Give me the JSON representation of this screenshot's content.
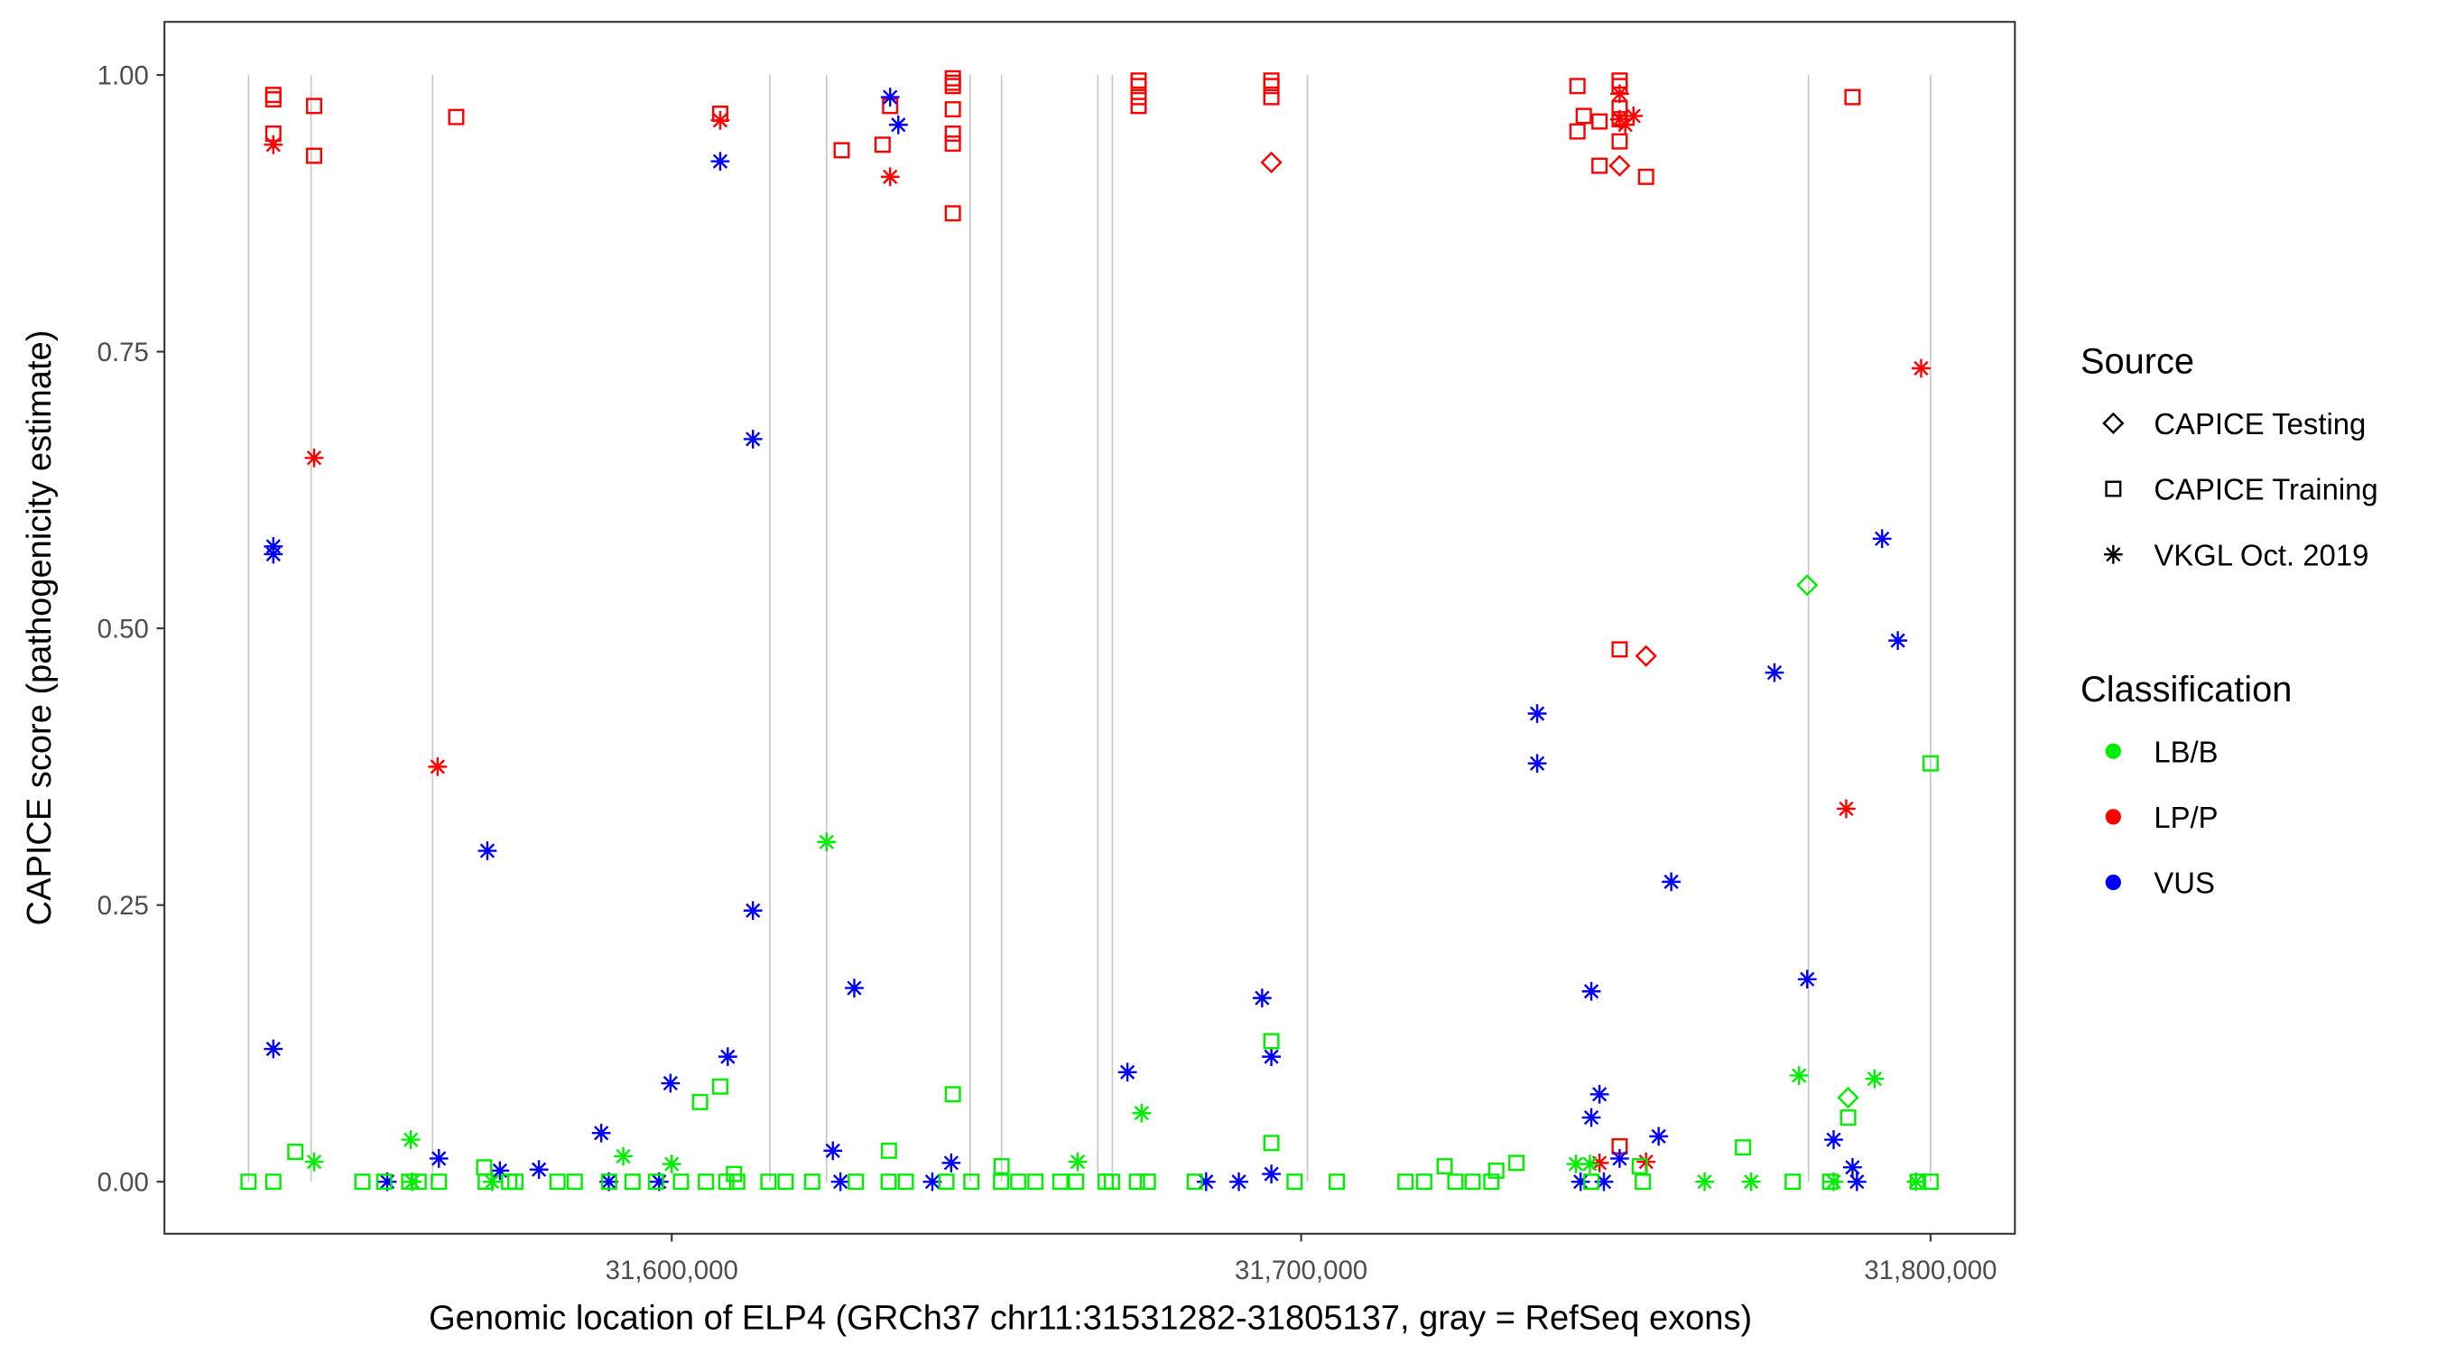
{
  "chart_data": {
    "type": "scatter",
    "xlabel": "Genomic location of ELP4 (GRCh37 chr11:31531282-31805137, gray = RefSeq exons)",
    "ylabel": "CAPICE score (pathogenicity estimate)",
    "xlim": [
      31519400,
      31813400
    ],
    "ylim": [
      -0.047,
      1.048
    ],
    "x_ticks": [
      31600000,
      31700000,
      31800000
    ],
    "x_tick_labels": [
      "31,600,000",
      "31,700,000",
      "31,800,000"
    ],
    "y_ticks": [
      0,
      0.25,
      0.5,
      0.75,
      1.0
    ],
    "y_tick_labels": [
      "0.00",
      "0.25",
      "0.50",
      "0.75",
      "1.00"
    ],
    "grid": false,
    "exons": [
      31532760,
      31542700,
      31562000,
      31615600,
      31624600,
      31647400,
      31652400,
      31667700,
      31670000,
      31701000,
      31780600,
      31800000
    ],
    "legend": {
      "placement": "right",
      "source_title": "Source",
      "source_entries": [
        {
          "key": "Testing",
          "label": "CAPICE Testing",
          "shape": "diamond"
        },
        {
          "key": "Training",
          "label": "CAPICE Training",
          "shape": "square"
        },
        {
          "key": "VKGL",
          "label": "VKGL Oct. 2019",
          "shape": "asterisk"
        }
      ],
      "class_title": "Classification",
      "class_entries": [
        {
          "key": "LB/B",
          "label": "LB/B",
          "color": "#00ee00"
        },
        {
          "key": "LP/P",
          "label": "LP/P",
          "color": "#ff0000"
        },
        {
          "key": "VUS",
          "label": "VUS",
          "color": "#0000ff"
        }
      ]
    },
    "point_columns": [
      "position",
      "score",
      "classification",
      "source"
    ],
    "points": [
      [
        31536700,
        0.982,
        "LP/P",
        "Training"
      ],
      [
        31536700,
        0.978,
        "LP/P",
        "Training"
      ],
      [
        31536700,
        0.947,
        "LP/P",
        "Training"
      ],
      [
        31543180,
        0.972,
        "LP/P",
        "Training"
      ],
      [
        31543180,
        0.927,
        "LP/P",
        "Training"
      ],
      [
        31565760,
        0.962,
        "LP/P",
        "Training"
      ],
      [
        31607700,
        0.965,
        "LP/P",
        "Training"
      ],
      [
        31627000,
        0.932,
        "LP/P",
        "Training"
      ],
      [
        31633500,
        0.937,
        "LP/P",
        "Training"
      ],
      [
        31634700,
        0.972,
        "LP/P",
        "Training"
      ],
      [
        31644660,
        0.997,
        "LP/P",
        "Training"
      ],
      [
        31644660,
        0.993,
        "LP/P",
        "Training"
      ],
      [
        31644660,
        0.99,
        "LP/P",
        "Training"
      ],
      [
        31644660,
        0.969,
        "LP/P",
        "Training"
      ],
      [
        31644660,
        0.947,
        "LP/P",
        "Training"
      ],
      [
        31644660,
        0.938,
        "LP/P",
        "Training"
      ],
      [
        31644660,
        0.875,
        "LP/P",
        "Training"
      ],
      [
        31674180,
        0.995,
        "LP/P",
        "Training"
      ],
      [
        31674180,
        0.99,
        "LP/P",
        "Training"
      ],
      [
        31674180,
        0.98,
        "LP/P",
        "Training"
      ],
      [
        31674180,
        0.972,
        "LP/P",
        "Training"
      ],
      [
        31695270,
        0.995,
        "LP/P",
        "Training"
      ],
      [
        31695270,
        0.99,
        "LP/P",
        "Training"
      ],
      [
        31695270,
        0.98,
        "LP/P",
        "Training"
      ],
      [
        31743900,
        0.99,
        "LP/P",
        "Training"
      ],
      [
        31744900,
        0.963,
        "LP/P",
        "Training"
      ],
      [
        31743900,
        0.949,
        "LP/P",
        "Training"
      ],
      [
        31747400,
        0.958,
        "LP/P",
        "Training"
      ],
      [
        31747400,
        0.918,
        "LP/P",
        "Training"
      ],
      [
        31750600,
        0.995,
        "LP/P",
        "Training"
      ],
      [
        31750600,
        0.99,
        "LP/P",
        "Training"
      ],
      [
        31750600,
        0.97,
        "LP/P",
        "Training"
      ],
      [
        31750600,
        0.96,
        "LP/P",
        "Training"
      ],
      [
        31750600,
        0.94,
        "LP/P",
        "Training"
      ],
      [
        31754800,
        0.908,
        "LP/P",
        "Training"
      ],
      [
        31750600,
        0.481,
        "LP/P",
        "Training"
      ],
      [
        31787600,
        0.98,
        "LP/P",
        "Training"
      ],
      [
        31750600,
        0.032,
        "LP/P",
        "Training"
      ],
      [
        31695270,
        0.921,
        "LP/P",
        "Testing"
      ],
      [
        31750600,
        0.918,
        "LP/P",
        "Testing"
      ],
      [
        31754800,
        0.475,
        "LP/P",
        "Testing"
      ],
      [
        31536700,
        0.937,
        "LP/P",
        "VKGL"
      ],
      [
        31543180,
        0.654,
        "LP/P",
        "VKGL"
      ],
      [
        31562800,
        0.375,
        "LP/P",
        "VKGL"
      ],
      [
        31607700,
        0.959,
        "LP/P",
        "VKGL"
      ],
      [
        31634700,
        0.908,
        "LP/P",
        "VKGL"
      ],
      [
        31750600,
        0.983,
        "LP/P",
        "VKGL"
      ],
      [
        31750600,
        0.96,
        "LP/P",
        "VKGL"
      ],
      [
        31751500,
        0.955,
        "LP/P",
        "VKGL"
      ],
      [
        31752800,
        0.963,
        "LP/P",
        "VKGL"
      ],
      [
        31747400,
        0.017,
        "LP/P",
        "VKGL"
      ],
      [
        31754800,
        0.018,
        "LP/P",
        "VKGL"
      ],
      [
        31786600,
        0.337,
        "LP/P",
        "VKGL"
      ],
      [
        31798500,
        0.735,
        "LP/P",
        "VKGL"
      ],
      [
        31536700,
        0.574,
        "VUS",
        "VKGL"
      ],
      [
        31536700,
        0.567,
        "VUS",
        "VKGL"
      ],
      [
        31536700,
        0.12,
        "VUS",
        "VKGL"
      ],
      [
        31563000,
        0.021,
        "VUS",
        "VKGL"
      ],
      [
        31554800,
        0,
        "VUS",
        "VKGL"
      ],
      [
        31570700,
        0.299,
        "VUS",
        "VKGL"
      ],
      [
        31572700,
        0.01,
        "VUS",
        "VKGL"
      ],
      [
        31578900,
        0.011,
        "VUS",
        "VKGL"
      ],
      [
        31588800,
        0.044,
        "VUS",
        "VKGL"
      ],
      [
        31590000,
        0,
        "VUS",
        "VKGL"
      ],
      [
        31598000,
        0,
        "VUS",
        "VKGL"
      ],
      [
        31599800,
        0.089,
        "VUS",
        "VKGL"
      ],
      [
        31607700,
        0.922,
        "VUS",
        "VKGL"
      ],
      [
        31608900,
        0.113,
        "VUS",
        "VKGL"
      ],
      [
        31612900,
        0.671,
        "VUS",
        "VKGL"
      ],
      [
        31612900,
        0.245,
        "VUS",
        "VKGL"
      ],
      [
        31625600,
        0.028,
        "VUS",
        "VKGL"
      ],
      [
        31626800,
        0,
        "VUS",
        "VKGL"
      ],
      [
        31629000,
        0.175,
        "VUS",
        "VKGL"
      ],
      [
        31634700,
        0.98,
        "VUS",
        "VKGL"
      ],
      [
        31636000,
        0.955,
        "VUS",
        "VKGL"
      ],
      [
        31641400,
        0,
        "VUS",
        "VKGL"
      ],
      [
        31644400,
        0.017,
        "VUS",
        "VKGL"
      ],
      [
        31672400,
        0.099,
        "VUS",
        "VKGL"
      ],
      [
        31684900,
        0,
        "VUS",
        "VKGL"
      ],
      [
        31690100,
        0,
        "VUS",
        "VKGL"
      ],
      [
        31693800,
        0.166,
        "VUS",
        "VKGL"
      ],
      [
        31695270,
        0.113,
        "VUS",
        "VKGL"
      ],
      [
        31695270,
        0.007,
        "VUS",
        "VKGL"
      ],
      [
        31737500,
        0.423,
        "VUS",
        "VKGL"
      ],
      [
        31737500,
        0.378,
        "VUS",
        "VKGL"
      ],
      [
        31744400,
        0,
        "VUS",
        "VKGL"
      ],
      [
        31746100,
        0.172,
        "VUS",
        "VKGL"
      ],
      [
        31746100,
        0.058,
        "VUS",
        "VKGL"
      ],
      [
        31747400,
        0.079,
        "VUS",
        "VKGL"
      ],
      [
        31748100,
        0,
        "VUS",
        "VKGL"
      ],
      [
        31750600,
        0.021,
        "VUS",
        "VKGL"
      ],
      [
        31756800,
        0.041,
        "VUS",
        "VKGL"
      ],
      [
        31758800,
        0.271,
        "VUS",
        "VKGL"
      ],
      [
        31775200,
        0.46,
        "VUS",
        "VKGL"
      ],
      [
        31780400,
        0.183,
        "VUS",
        "VKGL"
      ],
      [
        31784600,
        0.038,
        "VUS",
        "VKGL"
      ],
      [
        31787600,
        0.013,
        "VUS",
        "VKGL"
      ],
      [
        31788300,
        0,
        "VUS",
        "VKGL"
      ],
      [
        31792300,
        0.581,
        "VUS",
        "VKGL"
      ],
      [
        31794800,
        0.489,
        "VUS",
        "VKGL"
      ],
      [
        31532760,
        0,
        "LB/B",
        "Training"
      ],
      [
        31536700,
        0,
        "LB/B",
        "Training"
      ],
      [
        31550850,
        0,
        "LB/B",
        "Training"
      ],
      [
        31554320,
        0,
        "LB/B",
        "Training"
      ],
      [
        31558290,
        0,
        "LB/B",
        "Training"
      ],
      [
        31559780,
        0,
        "LB/B",
        "Training"
      ],
      [
        31563000,
        0,
        "LB/B",
        "Training"
      ],
      [
        31570450,
        0,
        "LB/B",
        "Training"
      ],
      [
        31574170,
        0,
        "LB/B",
        "Training"
      ],
      [
        31575160,
        0,
        "LB/B",
        "Training"
      ],
      [
        31581860,
        0,
        "LB/B",
        "Training"
      ],
      [
        31584590,
        0,
        "LB/B",
        "Training"
      ],
      [
        31590050,
        0,
        "LB/B",
        "Training"
      ],
      [
        31593770,
        0,
        "LB/B",
        "Training"
      ],
      [
        31597500,
        0,
        "LB/B",
        "Training"
      ],
      [
        31601470,
        0,
        "LB/B",
        "Training"
      ],
      [
        31605430,
        0,
        "LB/B",
        "Training"
      ],
      [
        31608660,
        0,
        "LB/B",
        "Training"
      ],
      [
        31610400,
        0,
        "LB/B",
        "Training"
      ],
      [
        31615360,
        0,
        "LB/B",
        "Training"
      ],
      [
        31618090,
        0,
        "LB/B",
        "Training"
      ],
      [
        31622310,
        0,
        "LB/B",
        "Training"
      ],
      [
        31629250,
        0,
        "LB/B",
        "Training"
      ],
      [
        31634460,
        0,
        "LB/B",
        "Training"
      ],
      [
        31637190,
        0,
        "LB/B",
        "Training"
      ],
      [
        31643640,
        0,
        "LB/B",
        "Training"
      ],
      [
        31647610,
        0,
        "LB/B",
        "Training"
      ],
      [
        31652320,
        0,
        "LB/B",
        "Training"
      ],
      [
        31655050,
        0,
        "LB/B",
        "Training"
      ],
      [
        31657780,
        0,
        "LB/B",
        "Training"
      ],
      [
        31661750,
        0,
        "LB/B",
        "Training"
      ],
      [
        31664230,
        0,
        "LB/B",
        "Training"
      ],
      [
        31668940,
        0,
        "LB/B",
        "Training"
      ],
      [
        31669940,
        0,
        "LB/B",
        "Training"
      ],
      [
        31673910,
        0,
        "LB/B",
        "Training"
      ],
      [
        31675640,
        0,
        "LB/B",
        "Training"
      ],
      [
        31683090,
        0,
        "LB/B",
        "Training"
      ],
      [
        31698960,
        0,
        "LB/B",
        "Training"
      ],
      [
        31705660,
        0,
        "LB/B",
        "Training"
      ],
      [
        31716570,
        0,
        "LB/B",
        "Training"
      ],
      [
        31719550,
        0,
        "LB/B",
        "Training"
      ],
      [
        31724510,
        0,
        "LB/B",
        "Training"
      ],
      [
        31727240,
        0,
        "LB/B",
        "Training"
      ],
      [
        31730220,
        0,
        "LB/B",
        "Training"
      ],
      [
        31746100,
        0,
        "LB/B",
        "Training"
      ],
      [
        31754290,
        0,
        "LB/B",
        "Training"
      ],
      [
        31778100,
        0,
        "LB/B",
        "Training"
      ],
      [
        31784060,
        0,
        "LB/B",
        "Training"
      ],
      [
        31800000,
        0,
        "LB/B",
        "Training"
      ],
      [
        31798000,
        0,
        "LB/B",
        "Training"
      ],
      [
        31540200,
        0.027,
        "LB/B",
        "Training"
      ],
      [
        31570200,
        0.013,
        "LB/B",
        "Training"
      ],
      [
        31604500,
        0.072,
        "LB/B",
        "Training"
      ],
      [
        31607700,
        0.086,
        "LB/B",
        "Training"
      ],
      [
        31609900,
        0.007,
        "LB/B",
        "Training"
      ],
      [
        31634500,
        0.028,
        "LB/B",
        "Training"
      ],
      [
        31644660,
        0.079,
        "LB/B",
        "Training"
      ],
      [
        31652400,
        0.014,
        "LB/B",
        "Training"
      ],
      [
        31695270,
        0.127,
        "LB/B",
        "Training"
      ],
      [
        31695270,
        0.035,
        "LB/B",
        "Training"
      ],
      [
        31722800,
        0.014,
        "LB/B",
        "Training"
      ],
      [
        31731000,
        0.01,
        "LB/B",
        "Training"
      ],
      [
        31734200,
        0.017,
        "LB/B",
        "Training"
      ],
      [
        31770200,
        0.031,
        "LB/B",
        "Training"
      ],
      [
        31786900,
        0.058,
        "LB/B",
        "Training"
      ],
      [
        31800000,
        0.378,
        "LB/B",
        "Training"
      ],
      [
        31753800,
        0.014,
        "LB/B",
        "Training"
      ],
      [
        31780400,
        0.539,
        "LB/B",
        "Testing"
      ],
      [
        31786900,
        0.076,
        "LB/B",
        "Testing"
      ],
      [
        31543180,
        0.018,
        "LB/B",
        "VKGL"
      ],
      [
        31558540,
        0.038,
        "LB/B",
        "VKGL"
      ],
      [
        31592300,
        0.023,
        "LB/B",
        "VKGL"
      ],
      [
        31600000,
        0.016,
        "LB/B",
        "VKGL"
      ],
      [
        31624600,
        0.307,
        "LB/B",
        "VKGL"
      ],
      [
        31664500,
        0.018,
        "LB/B",
        "VKGL"
      ],
      [
        31674650,
        0.062,
        "LB/B",
        "VKGL"
      ],
      [
        31743650,
        0.016,
        "LB/B",
        "VKGL"
      ],
      [
        31745880,
        0.016,
        "LB/B",
        "VKGL"
      ],
      [
        31764100,
        0,
        "LB/B",
        "VKGL"
      ],
      [
        31771500,
        0,
        "LB/B",
        "VKGL"
      ],
      [
        31779100,
        0.096,
        "LB/B",
        "VKGL"
      ],
      [
        31791100,
        0.093,
        "LB/B",
        "VKGL"
      ],
      [
        31784600,
        0,
        "LB/B",
        "VKGL"
      ],
      [
        31797700,
        0,
        "LB/B",
        "VKGL"
      ],
      [
        31558790,
        0,
        "LB/B",
        "VKGL"
      ],
      [
        31571440,
        0,
        "LB/B",
        "VKGL"
      ]
    ]
  }
}
